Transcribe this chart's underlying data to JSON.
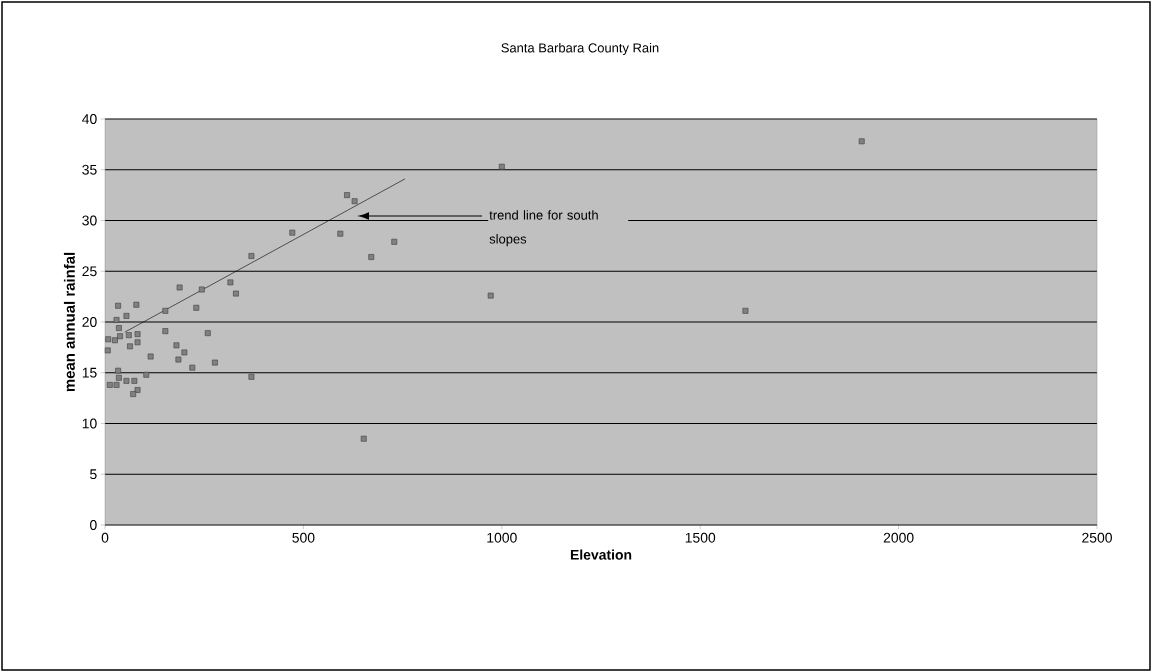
{
  "chart_data": {
    "type": "scatter",
    "title": "Santa Barbara County Rain",
    "xlabel": "Elevation",
    "ylabel": "mean annual rainfal",
    "xlim": [
      0,
      2500
    ],
    "xticks": [
      0,
      500,
      1000,
      1500,
      2000,
      2500
    ],
    "ylim": [
      0,
      40
    ],
    "yticks": [
      0,
      5,
      10,
      15,
      20,
      25,
      30,
      35,
      40
    ],
    "grid": "y",
    "annotations": [
      "trend line for south slopes"
    ],
    "series": [
      {
        "marker": "square",
        "color": "#808080",
        "x": [
          1000,
          610,
          629,
          472,
          593,
          729,
          671,
          972,
          652,
          1614,
          1907,
          369,
          188,
          244,
          316,
          330,
          33,
          79,
          54,
          29,
          152,
          230,
          35,
          8,
          7,
          25,
          38,
          60,
          82,
          82,
          63,
          152,
          259,
          180,
          200,
          115,
          185,
          277,
          220,
          104,
          369,
          33,
          35,
          12,
          29,
          54,
          74,
          82,
          71
        ],
        "values": [
          35.3,
          32.5,
          31.9,
          28.8,
          28.7,
          27.9,
          26.4,
          22.6,
          8.5,
          21.1,
          37.8,
          26.5,
          23.4,
          23.2,
          23.9,
          22.8,
          21.6,
          21.7,
          20.6,
          20.2,
          21.1,
          21.4,
          19.4,
          18.3,
          17.2,
          18.2,
          18.6,
          18.7,
          18.8,
          18.0,
          17.6,
          19.1,
          18.9,
          17.7,
          17.0,
          16.6,
          16.3,
          16.0,
          15.5,
          14.8,
          14.6,
          15.2,
          14.5,
          13.8,
          13.8,
          14.2,
          14.2,
          13.3,
          12.9
        ]
      },
      {
        "type": "line",
        "color": "#000000",
        "x": [
          50,
          756
        ],
        "values": [
          19.0,
          34.1
        ]
      }
    ]
  }
}
